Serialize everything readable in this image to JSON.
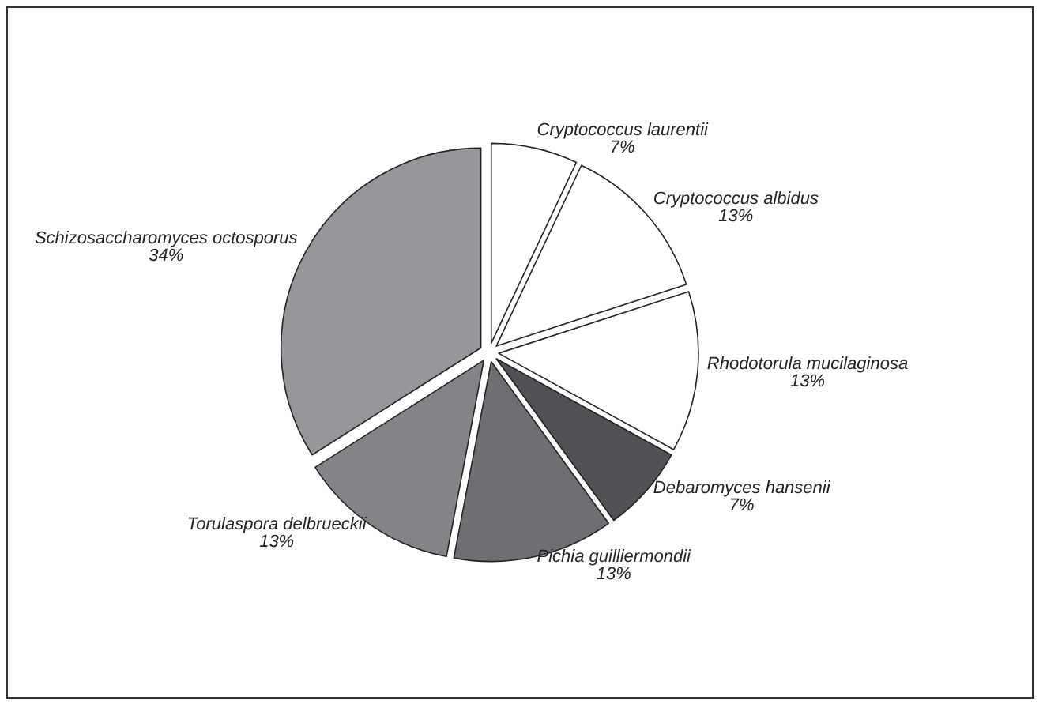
{
  "chart_data": {
    "type": "pie",
    "categories": [
      "Cryptococcus laurentii",
      "Cryptococcus albidus",
      "Rhodotorula mucilaginosa",
      "Debaromyces hansenii",
      "Pichia guilliermondii",
      "Torulaspora delbrueckii",
      "Schizosaccharomyces octosporus"
    ],
    "values": [
      7,
      13,
      13,
      7,
      13,
      13,
      34
    ],
    "colors": [
      "#ffffff",
      "#ffffff",
      "#ffffff",
      "#505154",
      "#6e6f72",
      "#838487",
      "#96979a"
    ],
    "value_labels": [
      "7%",
      "13%",
      "13%",
      "7%",
      "13%",
      "13%",
      "34%"
    ],
    "legend": false
  }
}
